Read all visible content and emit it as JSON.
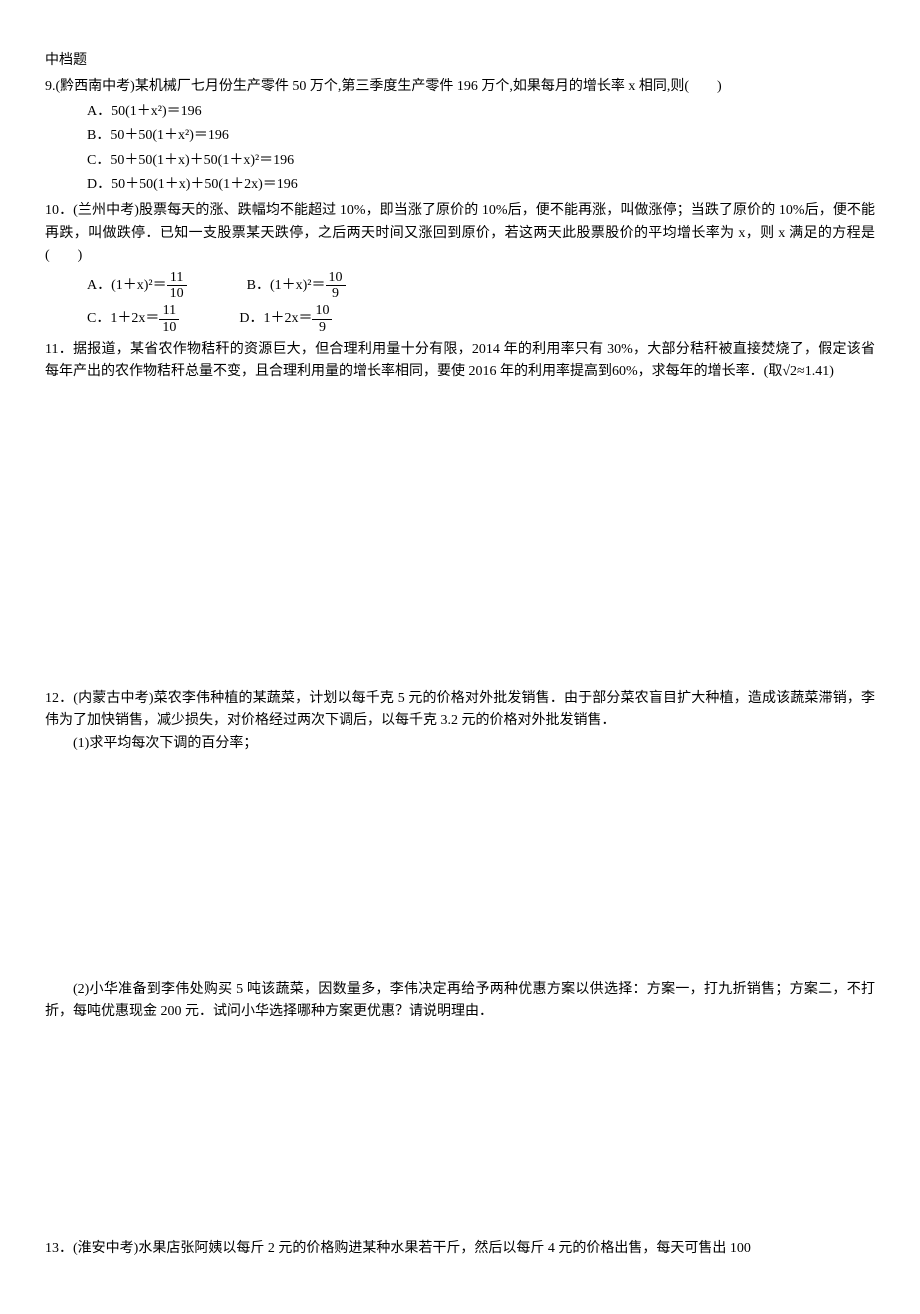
{
  "section_title": "中档题",
  "q9": {
    "prefix": "9.(黔西南中考)某机械厂七月份生产零件 50 万个,第三季度生产零件 196 万个,如果每月的增长率 x 相同,则(　　)",
    "optA": "A．50(1＋x²)＝196",
    "optB": "B．50＋50(1＋x²)＝196",
    "optC": "C．50＋50(1＋x)＋50(1＋x)²＝196",
    "optD": "D．50＋50(1＋x)＋50(1＋2x)＝196"
  },
  "q10": {
    "text": "10．(兰州中考)股票每天的涨、跌幅均不能超过 10%，即当涨了原价的 10%后，便不能再涨，叫做涨停；当跌了原价的 10%后，便不能再跌，叫做跌停．已知一支股票某天跌停，之后两天时间又涨回到原价，若这两天此股票股价的平均增长率为 x，则 x 满足的方程是(　　)",
    "optA_pre": "A．(1＋x)²＝",
    "optA_num": "11",
    "optA_den": "10",
    "optB_pre": "B．(1＋x)²＝",
    "optB_num": "10",
    "optB_den": "9",
    "optC_pre": "C．1＋2x＝",
    "optC_num": "11",
    "optC_den": "10",
    "optD_pre": "D．1＋2x＝",
    "optD_num": "10",
    "optD_den": "9"
  },
  "q11": {
    "text": "11．据报道，某省农作物秸秆的资源巨大，但合理利用量十分有限，2014 年的利用率只有 30%，大部分秸秆被直接焚烧了，假定该省每年产出的农作物秸秆总量不变，且合理利用量的增长率相同，要使 2016 年的利用率提高到60%，求每年的增长率．(取√2≈1.41)"
  },
  "q12": {
    "text": "12．(内蒙古中考)菜农李伟种植的某蔬菜，计划以每千克 5 元的价格对外批发销售．由于部分菜农盲目扩大种植，造成该蔬菜滞销，李伟为了加快销售，减少损失，对价格经过两次下调后，以每千克 3.2 元的价格对外批发销售．",
    "sub1": "(1)求平均每次下调的百分率；",
    "sub2": "(2)小华准备到李伟处购买 5 吨该蔬菜，因数量多，李伟决定再给予两种优惠方案以供选择：方案一，打九折销售；方案二，不打折，每吨优惠现金 200 元．试问小华选择哪种方案更优惠？请说明理由．"
  },
  "q13": {
    "text": "13．(淮安中考)水果店张阿姨以每斤 2 元的价格购进某种水果若干斤，然后以每斤 4 元的价格出售，每天可售出 100"
  }
}
